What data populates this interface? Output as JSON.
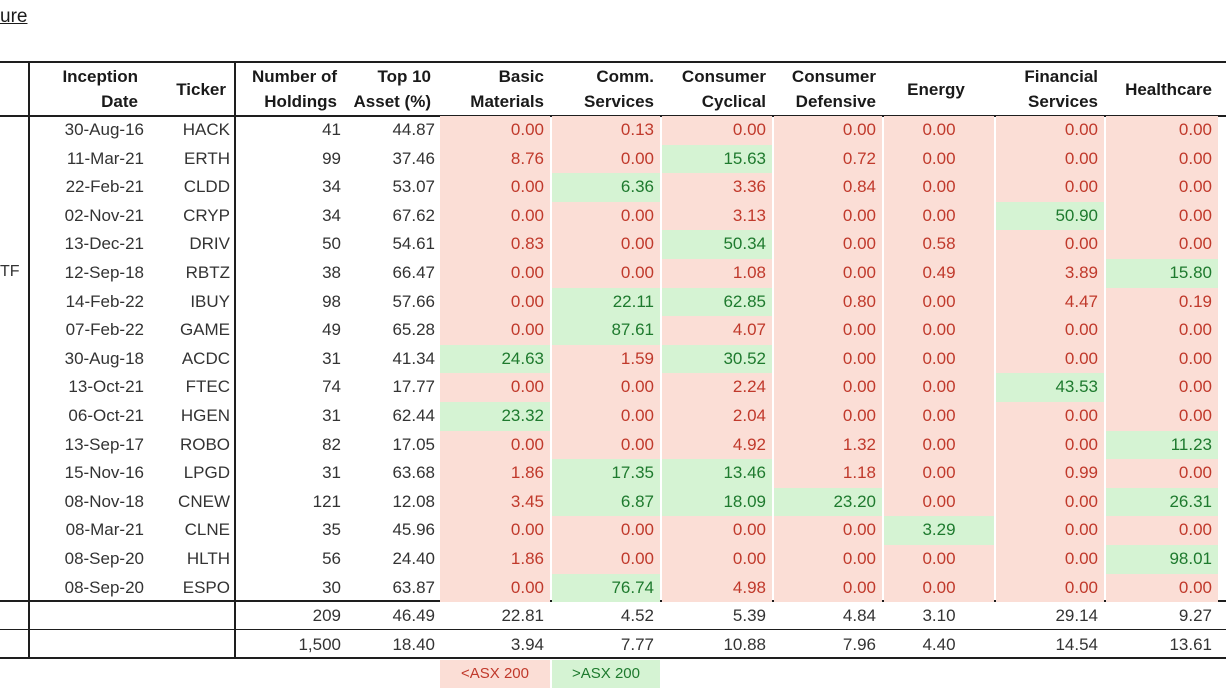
{
  "title_link": "ure",
  "row_label_fragment": "TF",
  "columns": [
    {
      "key": "date",
      "line1": "Inception",
      "line2": "Date"
    },
    {
      "key": "ticker",
      "line1": "Ticker",
      "line2": ""
    },
    {
      "key": "holdings",
      "line1": "Number of",
      "line2": "Holdings"
    },
    {
      "key": "top10",
      "line1": "Top 10",
      "line2": "Asset (%)"
    },
    {
      "key": "basic",
      "line1": "Basic",
      "line2": "Materials"
    },
    {
      "key": "comm",
      "line1": "Comm.",
      "line2": "Services"
    },
    {
      "key": "cyc",
      "line1": "Consumer",
      "line2": "Cyclical"
    },
    {
      "key": "def",
      "line1": "Consumer",
      "line2": "Defensive"
    },
    {
      "key": "energy",
      "line1": "Energy",
      "line2": ""
    },
    {
      "key": "fin",
      "line1": "Financial",
      "line2": "Services"
    },
    {
      "key": "health",
      "line1": "Healthcare",
      "line2": ""
    }
  ],
  "rows": [
    {
      "date": "30-Aug-16",
      "ticker": "HACK",
      "holdings": "41",
      "top10": "44.87",
      "sectors": [
        "0.00",
        "0.13",
        "0.00",
        "0.00",
        "0.00",
        "0.00",
        "0.00"
      ],
      "flags": [
        "L",
        "L",
        "L",
        "L",
        "L",
        "L",
        "L"
      ]
    },
    {
      "date": "11-Mar-21",
      "ticker": "ERTH",
      "holdings": "99",
      "top10": "37.46",
      "sectors": [
        "8.76",
        "0.00",
        "15.63",
        "0.72",
        "0.00",
        "0.00",
        "0.00"
      ],
      "flags": [
        "L",
        "L",
        "H",
        "L",
        "L",
        "L",
        "L"
      ]
    },
    {
      "date": "22-Feb-21",
      "ticker": "CLDD",
      "holdings": "34",
      "top10": "53.07",
      "sectors": [
        "0.00",
        "6.36",
        "3.36",
        "0.84",
        "0.00",
        "0.00",
        "0.00"
      ],
      "flags": [
        "L",
        "H",
        "L",
        "L",
        "L",
        "L",
        "L"
      ]
    },
    {
      "date": "02-Nov-21",
      "ticker": "CRYP",
      "holdings": "34",
      "top10": "67.62",
      "sectors": [
        "0.00",
        "0.00",
        "3.13",
        "0.00",
        "0.00",
        "50.90",
        "0.00"
      ],
      "flags": [
        "L",
        "L",
        "L",
        "L",
        "L",
        "H",
        "L"
      ]
    },
    {
      "date": "13-Dec-21",
      "ticker": "DRIV",
      "holdings": "50",
      "top10": "54.61",
      "sectors": [
        "0.83",
        "0.00",
        "50.34",
        "0.00",
        "0.58",
        "0.00",
        "0.00"
      ],
      "flags": [
        "L",
        "L",
        "H",
        "L",
        "L",
        "L",
        "L"
      ]
    },
    {
      "date": "12-Sep-18",
      "ticker": "RBTZ",
      "holdings": "38",
      "top10": "66.47",
      "sectors": [
        "0.00",
        "0.00",
        "1.08",
        "0.00",
        "0.49",
        "3.89",
        "15.80"
      ],
      "flags": [
        "L",
        "L",
        "L",
        "L",
        "L",
        "L",
        "H"
      ]
    },
    {
      "date": "14-Feb-22",
      "ticker": "IBUY",
      "holdings": "98",
      "top10": "57.66",
      "sectors": [
        "0.00",
        "22.11",
        "62.85",
        "0.80",
        "0.00",
        "4.47",
        "0.19"
      ],
      "flags": [
        "L",
        "H",
        "H",
        "L",
        "L",
        "L",
        "L"
      ]
    },
    {
      "date": "07-Feb-22",
      "ticker": "GAME",
      "holdings": "49",
      "top10": "65.28",
      "sectors": [
        "0.00",
        "87.61",
        "4.07",
        "0.00",
        "0.00",
        "0.00",
        "0.00"
      ],
      "flags": [
        "L",
        "H",
        "L",
        "L",
        "L",
        "L",
        "L"
      ]
    },
    {
      "date": "30-Aug-18",
      "ticker": "ACDC",
      "holdings": "31",
      "top10": "41.34",
      "sectors": [
        "24.63",
        "1.59",
        "30.52",
        "0.00",
        "0.00",
        "0.00",
        "0.00"
      ],
      "flags": [
        "H",
        "L",
        "H",
        "L",
        "L",
        "L",
        "L"
      ]
    },
    {
      "date": "13-Oct-21",
      "ticker": "FTEC",
      "holdings": "74",
      "top10": "17.77",
      "sectors": [
        "0.00",
        "0.00",
        "2.24",
        "0.00",
        "0.00",
        "43.53",
        "0.00"
      ],
      "flags": [
        "L",
        "L",
        "L",
        "L",
        "L",
        "H",
        "L"
      ]
    },
    {
      "date": "06-Oct-21",
      "ticker": "HGEN",
      "holdings": "31",
      "top10": "62.44",
      "sectors": [
        "23.32",
        "0.00",
        "2.04",
        "0.00",
        "0.00",
        "0.00",
        "0.00"
      ],
      "flags": [
        "H",
        "L",
        "L",
        "L",
        "L",
        "L",
        "L"
      ]
    },
    {
      "date": "13-Sep-17",
      "ticker": "ROBO",
      "holdings": "82",
      "top10": "17.05",
      "sectors": [
        "0.00",
        "0.00",
        "4.92",
        "1.32",
        "0.00",
        "0.00",
        "11.23"
      ],
      "flags": [
        "L",
        "L",
        "L",
        "L",
        "L",
        "L",
        "H"
      ]
    },
    {
      "date": "15-Nov-16",
      "ticker": "LPGD",
      "holdings": "31",
      "top10": "63.68",
      "sectors": [
        "1.86",
        "17.35",
        "13.46",
        "1.18",
        "0.00",
        "0.99",
        "0.00"
      ],
      "flags": [
        "L",
        "H",
        "H",
        "L",
        "L",
        "L",
        "L"
      ]
    },
    {
      "date": "08-Nov-18",
      "ticker": "CNEW",
      "holdings": "121",
      "top10": "12.08",
      "sectors": [
        "3.45",
        "6.87",
        "18.09",
        "23.20",
        "0.00",
        "0.00",
        "26.31"
      ],
      "flags": [
        "L",
        "H",
        "H",
        "H",
        "L",
        "L",
        "H"
      ]
    },
    {
      "date": "08-Mar-21",
      "ticker": "CLNE",
      "holdings": "35",
      "top10": "45.96",
      "sectors": [
        "0.00",
        "0.00",
        "0.00",
        "0.00",
        "3.29",
        "0.00",
        "0.00"
      ],
      "flags": [
        "L",
        "L",
        "L",
        "L",
        "H",
        "L",
        "L"
      ]
    },
    {
      "date": "08-Sep-20",
      "ticker": "HLTH",
      "holdings": "56",
      "top10": "24.40",
      "sectors": [
        "1.86",
        "0.00",
        "0.00",
        "0.00",
        "0.00",
        "0.00",
        "98.01"
      ],
      "flags": [
        "L",
        "L",
        "L",
        "L",
        "L",
        "L",
        "H"
      ]
    },
    {
      "date": "08-Sep-20",
      "ticker": "ESPO",
      "holdings": "30",
      "top10": "63.87",
      "sectors": [
        "0.00",
        "76.74",
        "4.98",
        "0.00",
        "0.00",
        "0.00",
        "0.00"
      ],
      "flags": [
        "L",
        "H",
        "L",
        "L",
        "L",
        "L",
        "L"
      ]
    }
  ],
  "summary_rows": [
    {
      "holdings": "209",
      "top10": "46.49",
      "sectors": [
        "22.81",
        "4.52",
        "5.39",
        "4.84",
        "3.10",
        "29.14",
        "9.27"
      ]
    },
    {
      "holdings": "1,500",
      "top10": "18.40",
      "sectors": [
        "3.94",
        "7.77",
        "10.88",
        "7.96",
        "4.40",
        "14.54",
        "13.61"
      ]
    }
  ],
  "legend": {
    "low": "<ASX 200",
    "high": ">ASX 200"
  },
  "colors": {
    "low_bg": "#fbded6",
    "low_text": "#c0392b",
    "high_bg": "#d5f3d3",
    "high_text": "#1e7a2e"
  }
}
